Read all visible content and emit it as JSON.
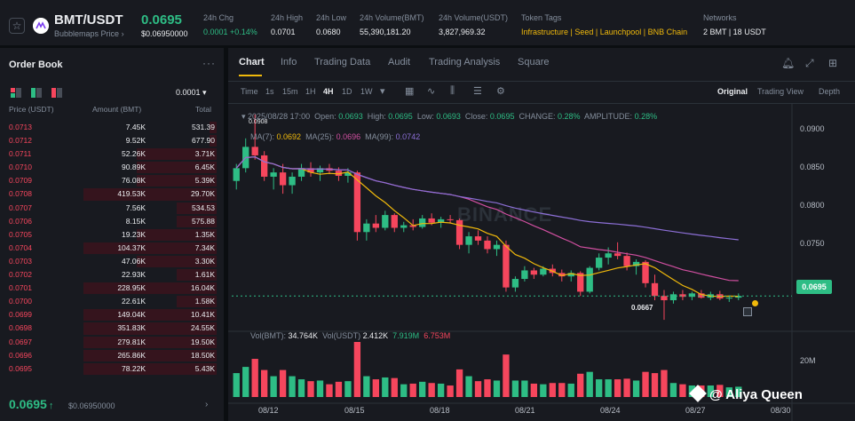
{
  "header": {
    "pair": "BMT/USDT",
    "subtitle": "Bubblemaps Price",
    "price": "0.0695",
    "price_usd": "$0.06950000",
    "stats": [
      {
        "label": "24h Chg",
        "value": "0.0001 +0.14%",
        "color": "green"
      },
      {
        "label": "24h High",
        "value": "0.0701"
      },
      {
        "label": "24h Low",
        "value": "0.0680"
      },
      {
        "label": "24h Volume(BMT)",
        "value": "55,390,181.20"
      },
      {
        "label": "24h Volume(USDT)",
        "value": "3,827,969.32"
      },
      {
        "label": "Token Tags",
        "value": "Infrastructure | Seed | Launchpool | BNB Chain",
        "color": "yellow"
      },
      {
        "label": "Networks",
        "value": "2 BMT | 18 USDT"
      }
    ]
  },
  "orderbook": {
    "title": "Order Book",
    "tick": "0.0001",
    "columns": {
      "price": "Price (USDT)",
      "amount": "Amount (BMT)",
      "total": "Total"
    },
    "rows": [
      {
        "price": "0.0713",
        "amount": "7.45K",
        "total": "531.39",
        "depth": 0.05
      },
      {
        "price": "0.0712",
        "amount": "9.52K",
        "total": "677.90",
        "depth": 0.05
      },
      {
        "price": "0.0711",
        "amount": "52.26K",
        "total": "3.71K",
        "depth": 0.6
      },
      {
        "price": "0.0710",
        "amount": "90.89K",
        "total": "6.45K",
        "depth": 0.6
      },
      {
        "price": "0.0709",
        "amount": "76.08K",
        "total": "5.39K",
        "depth": 0.6
      },
      {
        "price": "0.0708",
        "amount": "419.53K",
        "total": "29.70K",
        "depth": 1.0
      },
      {
        "price": "0.0707",
        "amount": "7.56K",
        "total": "534.53",
        "depth": 0.3
      },
      {
        "price": "0.0706",
        "amount": "8.15K",
        "total": "575.88",
        "depth": 0.3
      },
      {
        "price": "0.0705",
        "amount": "19.23K",
        "total": "1.35K",
        "depth": 0.6
      },
      {
        "price": "0.0704",
        "amount": "104.37K",
        "total": "7.34K",
        "depth": 1.0
      },
      {
        "price": "0.0703",
        "amount": "47.06K",
        "total": "3.30K",
        "depth": 0.6
      },
      {
        "price": "0.0702",
        "amount": "22.93K",
        "total": "1.61K",
        "depth": 0.3
      },
      {
        "price": "0.0701",
        "amount": "228.95K",
        "total": "16.04K",
        "depth": 1.0
      },
      {
        "price": "0.0700",
        "amount": "22.61K",
        "total": "1.58K",
        "depth": 0.3
      },
      {
        "price": "0.0699",
        "amount": "149.04K",
        "total": "10.41K",
        "depth": 1.0
      },
      {
        "price": "0.0698",
        "amount": "351.83K",
        "total": "24.55K",
        "depth": 1.0
      },
      {
        "price": "0.0697",
        "amount": "279.81K",
        "total": "19.50K",
        "depth": 1.0
      },
      {
        "price": "0.0696",
        "amount": "265.86K",
        "total": "18.50K",
        "depth": 1.0
      },
      {
        "price": "0.0695",
        "amount": "78.22K",
        "total": "5.43K",
        "depth": 1.0
      }
    ],
    "last_price": "0.0695",
    "last_arrow": "↑",
    "last_price_usd": "$0.06950000"
  },
  "chart_tabs": [
    "Chart",
    "Info",
    "Trading Data",
    "Audit",
    "Trading Analysis",
    "Square"
  ],
  "intervals": [
    "Time",
    "1s",
    "15m",
    "1H",
    "4H",
    "1D",
    "1W"
  ],
  "active_interval": "4H",
  "views": [
    "Original",
    "Trading View",
    "Depth"
  ],
  "ohlc": {
    "date": "2025/08/28 17:00",
    "open_label": "Open:",
    "open": "0.0693",
    "high_label": "High:",
    "high": "0.0695",
    "low_label": "Low:",
    "low": "0.0693",
    "close_label": "Close:",
    "close": "0.0695",
    "change_label": "CHANGE:",
    "change": "0.28%",
    "amplitude_label": "AMPLITUDE:",
    "amplitude": "0.28%"
  },
  "ma": {
    "ma7_label": "MA(7):",
    "ma7": "0.0692",
    "ma25_label": "MA(25):",
    "ma25": "0.0696",
    "ma99_label": "MA(99):",
    "ma99": "0.0742"
  },
  "volume_legend": {
    "bmt_label": "Vol(BMT):",
    "bmt": "34.764K",
    "usdt_label": "Vol(USDT)",
    "usdt": "2.412K",
    "ma1": "7.919M",
    "ma2": "6.753M"
  },
  "price_axis": [
    "0.0900",
    "0.0850",
    "0.0800",
    "0.0750"
  ],
  "last_badge": "0.0695",
  "high_marker": "0.0908",
  "low_marker": "0.0667",
  "volume_axis": "20M",
  "dates": [
    "08/12",
    "08/15",
    "08/18",
    "08/21",
    "08/24",
    "08/27",
    "08/30"
  ],
  "watermark": "BINANCE",
  "credit": "@ Aliya Queen",
  "colors": {
    "up": "#2ebd85",
    "down": "#f6465d",
    "ma7": "#f0b90b",
    "ma25": "#d04fa0",
    "ma99": "#8c6fd6"
  },
  "chart_data": {
    "type": "candlestick",
    "interval": "4H",
    "x": [
      "08/12",
      "08/15",
      "08/18",
      "08/21",
      "08/24",
      "08/27",
      "08/30"
    ],
    "ylim": [
      0.0665,
      0.091
    ],
    "ohlc": [
      [
        0.083,
        0.085,
        0.082,
        0.0845
      ],
      [
        0.0845,
        0.088,
        0.084,
        0.087
      ],
      [
        0.087,
        0.0908,
        0.0855,
        0.086
      ],
      [
        0.086,
        0.0865,
        0.083,
        0.0835
      ],
      [
        0.0835,
        0.0845,
        0.082,
        0.084
      ],
      [
        0.084,
        0.085,
        0.0815,
        0.0825
      ],
      [
        0.0825,
        0.084,
        0.0815,
        0.0835
      ],
      [
        0.0835,
        0.085,
        0.083,
        0.0845
      ],
      [
        0.0845,
        0.0852,
        0.0835,
        0.084
      ],
      [
        0.084,
        0.0848,
        0.083,
        0.0845
      ],
      [
        0.0845,
        0.085,
        0.0838,
        0.0842
      ],
      [
        0.0842,
        0.0846,
        0.083,
        0.0836
      ],
      [
        0.0836,
        0.0845,
        0.0828,
        0.084
      ],
      [
        0.084,
        0.0842,
        0.076,
        0.077
      ],
      [
        0.077,
        0.0785,
        0.076,
        0.078
      ],
      [
        0.078,
        0.079,
        0.077,
        0.0775
      ],
      [
        0.0775,
        0.0795,
        0.0772,
        0.079
      ],
      [
        0.079,
        0.0792,
        0.077,
        0.0775
      ],
      [
        0.0775,
        0.0782,
        0.077,
        0.0778
      ],
      [
        0.0778,
        0.0785,
        0.0772,
        0.0776
      ],
      [
        0.0776,
        0.079,
        0.0774,
        0.0786
      ],
      [
        0.0786,
        0.0792,
        0.0778,
        0.0781
      ],
      [
        0.0781,
        0.0788,
        0.0775,
        0.0785
      ],
      [
        0.0785,
        0.079,
        0.078,
        0.0784
      ],
      [
        0.0784,
        0.0786,
        0.075,
        0.0755
      ],
      [
        0.0755,
        0.077,
        0.0745,
        0.0765
      ],
      [
        0.0765,
        0.0772,
        0.0755,
        0.076
      ],
      [
        0.076,
        0.0765,
        0.0745,
        0.075
      ],
      [
        0.075,
        0.076,
        0.0742,
        0.0755
      ],
      [
        0.0755,
        0.076,
        0.07,
        0.0705
      ],
      [
        0.0705,
        0.0718,
        0.07,
        0.0715
      ],
      [
        0.0715,
        0.073,
        0.0712,
        0.0725
      ],
      [
        0.0725,
        0.0728,
        0.0715,
        0.072
      ],
      [
        0.072,
        0.073,
        0.0718,
        0.0727
      ],
      [
        0.0727,
        0.0732,
        0.0718,
        0.0722
      ],
      [
        0.0722,
        0.0726,
        0.0712,
        0.0718
      ],
      [
        0.0718,
        0.0725,
        0.0712,
        0.0722
      ],
      [
        0.0722,
        0.0724,
        0.0695,
        0.07
      ],
      [
        0.07,
        0.073,
        0.0698,
        0.0728
      ],
      [
        0.0728,
        0.0745,
        0.0725,
        0.074
      ],
      [
        0.074,
        0.0752,
        0.0732,
        0.0745
      ],
      [
        0.0745,
        0.0758,
        0.0738,
        0.0742
      ],
      [
        0.0742,
        0.0746,
        0.0725,
        0.073
      ],
      [
        0.073,
        0.0738,
        0.072,
        0.0735
      ],
      [
        0.0735,
        0.0737,
        0.0705,
        0.071
      ],
      [
        0.071,
        0.072,
        0.069,
        0.0695
      ],
      [
        0.0695,
        0.0702,
        0.0667,
        0.069
      ],
      [
        0.069,
        0.07,
        0.0686,
        0.0697
      ],
      [
        0.0697,
        0.0702,
        0.069,
        0.0694
      ],
      [
        0.0694,
        0.07,
        0.069,
        0.0698
      ],
      [
        0.0698,
        0.0702,
        0.0692,
        0.0693
      ],
      [
        0.0693,
        0.07,
        0.069,
        0.0697
      ],
      [
        0.0697,
        0.0701,
        0.069,
        0.0692
      ],
      [
        0.0692,
        0.0695,
        0.0688,
        0.0693
      ],
      [
        0.0693,
        0.0698,
        0.069,
        0.0695
      ]
    ],
    "volume_scale": "20M"
  }
}
